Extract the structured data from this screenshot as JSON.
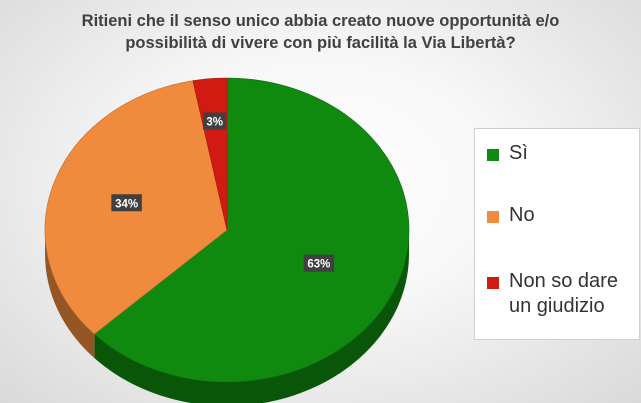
{
  "chart_data": {
    "type": "pie",
    "title": [
      "Ritieni che il senso unico abbia creato nuove opportunità e/o",
      "possibilità di vivere con più facilità la Via Libertà?"
    ],
    "categories": [
      "Sì",
      "No",
      "Non so dare un giudizio"
    ],
    "values": [
      63,
      34,
      3
    ],
    "value_labels": [
      "63%",
      "34%",
      "3%"
    ],
    "colors": [
      "#0f8a0f",
      "#f08a3c",
      "#d11a12"
    ],
    "legend_position": "right"
  }
}
